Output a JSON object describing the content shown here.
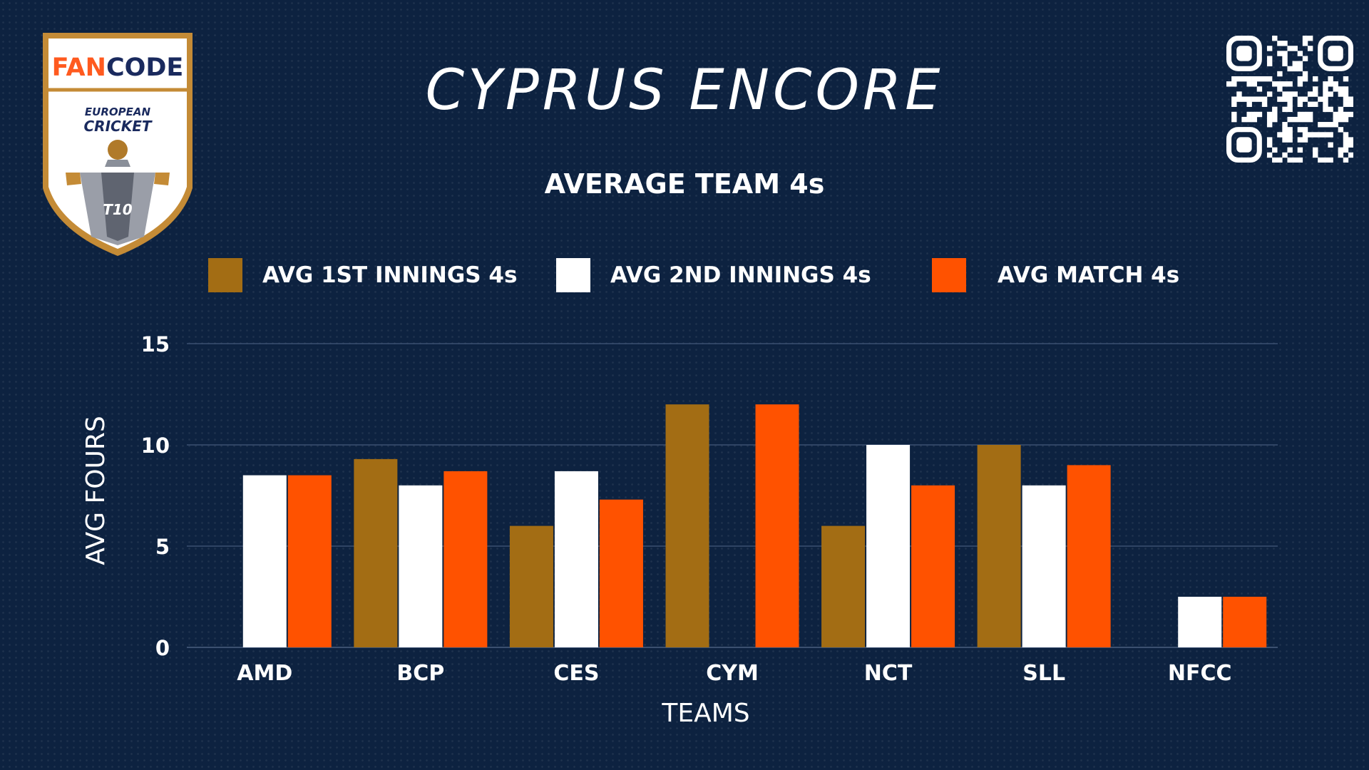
{
  "header": {
    "title": "CYPRUS ENCORE",
    "logo_brand": "FANCODE",
    "logo_line1": "EUROPEAN",
    "logo_line2": "CRICKET",
    "logo_badge": "T10",
    "logo_icon": "fancode-european-cricket-t10-shield-logo",
    "qr_icon": "qr-code-icon"
  },
  "chart_data": {
    "type": "bar",
    "title": "AVERAGE TEAM 4s",
    "xlabel": "TEAMS",
    "ylabel": "AVG FOURS",
    "ylim": [
      0,
      15
    ],
    "yticks": [
      "0",
      "5",
      "10",
      "15"
    ],
    "grid": true,
    "legend_position": "top",
    "categories": [
      "AMD",
      "BCP",
      "CES",
      "CYM",
      "NCT",
      "SLL",
      "NFCC"
    ],
    "series": [
      {
        "name": "AVG 1ST INNINGS 4s",
        "color": "#a36d14",
        "values": [
          0,
          9.3,
          6,
          12,
          6,
          10,
          0
        ]
      },
      {
        "name": "AVG 2ND INNINGS 4s",
        "color": "#ffffff",
        "values": [
          8.5,
          8,
          8.7,
          0,
          10,
          8,
          2.5
        ]
      },
      {
        "name": "AVG MATCH 4s",
        "color": "#ff5200",
        "values": [
          8.5,
          8.7,
          7.3,
          12,
          8,
          9,
          2.5
        ]
      }
    ]
  },
  "colors": {
    "background": "#0d2240",
    "gridline": "#3b5070",
    "logo_orange": "#ff5a1f",
    "logo_navy": "#1a2a5e",
    "logo_gold": "#b07a2a"
  }
}
